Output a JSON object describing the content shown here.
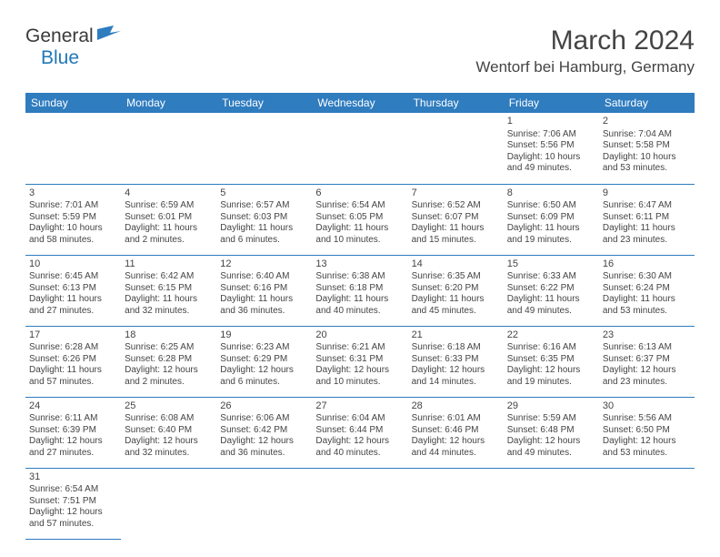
{
  "logo": {
    "text1": "General",
    "text2": "Blue"
  },
  "title": "March 2024",
  "location": "Wentorf bei Hamburg, Germany",
  "columns": [
    "Sunday",
    "Monday",
    "Tuesday",
    "Wednesday",
    "Thursday",
    "Friday",
    "Saturday"
  ],
  "colors": {
    "header_bg": "#2f7cbf",
    "header_text": "#ffffff",
    "border": "#2f7cbf",
    "body_text": "#444444",
    "logo_gray": "#3a3a3a",
    "logo_blue": "#2178b8",
    "background": "#ffffff"
  },
  "typography": {
    "month_title_fontsize": 30,
    "location_fontsize": 17,
    "logo_fontsize": 21,
    "header_cell_fontsize": 12,
    "daynum_fontsize": 11,
    "info_fontsize": 10
  },
  "weeks": [
    [
      null,
      null,
      null,
      null,
      null,
      {
        "day": "1",
        "sunrise": "Sunrise: 7:06 AM",
        "sunset": "Sunset: 5:56 PM",
        "daylight1": "Daylight: 10 hours",
        "daylight2": "and 49 minutes."
      },
      {
        "day": "2",
        "sunrise": "Sunrise: 7:04 AM",
        "sunset": "Sunset: 5:58 PM",
        "daylight1": "Daylight: 10 hours",
        "daylight2": "and 53 minutes."
      }
    ],
    [
      {
        "day": "3",
        "sunrise": "Sunrise: 7:01 AM",
        "sunset": "Sunset: 5:59 PM",
        "daylight1": "Daylight: 10 hours",
        "daylight2": "and 58 minutes."
      },
      {
        "day": "4",
        "sunrise": "Sunrise: 6:59 AM",
        "sunset": "Sunset: 6:01 PM",
        "daylight1": "Daylight: 11 hours",
        "daylight2": "and 2 minutes."
      },
      {
        "day": "5",
        "sunrise": "Sunrise: 6:57 AM",
        "sunset": "Sunset: 6:03 PM",
        "daylight1": "Daylight: 11 hours",
        "daylight2": "and 6 minutes."
      },
      {
        "day": "6",
        "sunrise": "Sunrise: 6:54 AM",
        "sunset": "Sunset: 6:05 PM",
        "daylight1": "Daylight: 11 hours",
        "daylight2": "and 10 minutes."
      },
      {
        "day": "7",
        "sunrise": "Sunrise: 6:52 AM",
        "sunset": "Sunset: 6:07 PM",
        "daylight1": "Daylight: 11 hours",
        "daylight2": "and 15 minutes."
      },
      {
        "day": "8",
        "sunrise": "Sunrise: 6:50 AM",
        "sunset": "Sunset: 6:09 PM",
        "daylight1": "Daylight: 11 hours",
        "daylight2": "and 19 minutes."
      },
      {
        "day": "9",
        "sunrise": "Sunrise: 6:47 AM",
        "sunset": "Sunset: 6:11 PM",
        "daylight1": "Daylight: 11 hours",
        "daylight2": "and 23 minutes."
      }
    ],
    [
      {
        "day": "10",
        "sunrise": "Sunrise: 6:45 AM",
        "sunset": "Sunset: 6:13 PM",
        "daylight1": "Daylight: 11 hours",
        "daylight2": "and 27 minutes."
      },
      {
        "day": "11",
        "sunrise": "Sunrise: 6:42 AM",
        "sunset": "Sunset: 6:15 PM",
        "daylight1": "Daylight: 11 hours",
        "daylight2": "and 32 minutes."
      },
      {
        "day": "12",
        "sunrise": "Sunrise: 6:40 AM",
        "sunset": "Sunset: 6:16 PM",
        "daylight1": "Daylight: 11 hours",
        "daylight2": "and 36 minutes."
      },
      {
        "day": "13",
        "sunrise": "Sunrise: 6:38 AM",
        "sunset": "Sunset: 6:18 PM",
        "daylight1": "Daylight: 11 hours",
        "daylight2": "and 40 minutes."
      },
      {
        "day": "14",
        "sunrise": "Sunrise: 6:35 AM",
        "sunset": "Sunset: 6:20 PM",
        "daylight1": "Daylight: 11 hours",
        "daylight2": "and 45 minutes."
      },
      {
        "day": "15",
        "sunrise": "Sunrise: 6:33 AM",
        "sunset": "Sunset: 6:22 PM",
        "daylight1": "Daylight: 11 hours",
        "daylight2": "and 49 minutes."
      },
      {
        "day": "16",
        "sunrise": "Sunrise: 6:30 AM",
        "sunset": "Sunset: 6:24 PM",
        "daylight1": "Daylight: 11 hours",
        "daylight2": "and 53 minutes."
      }
    ],
    [
      {
        "day": "17",
        "sunrise": "Sunrise: 6:28 AM",
        "sunset": "Sunset: 6:26 PM",
        "daylight1": "Daylight: 11 hours",
        "daylight2": "and 57 minutes."
      },
      {
        "day": "18",
        "sunrise": "Sunrise: 6:25 AM",
        "sunset": "Sunset: 6:28 PM",
        "daylight1": "Daylight: 12 hours",
        "daylight2": "and 2 minutes."
      },
      {
        "day": "19",
        "sunrise": "Sunrise: 6:23 AM",
        "sunset": "Sunset: 6:29 PM",
        "daylight1": "Daylight: 12 hours",
        "daylight2": "and 6 minutes."
      },
      {
        "day": "20",
        "sunrise": "Sunrise: 6:21 AM",
        "sunset": "Sunset: 6:31 PM",
        "daylight1": "Daylight: 12 hours",
        "daylight2": "and 10 minutes."
      },
      {
        "day": "21",
        "sunrise": "Sunrise: 6:18 AM",
        "sunset": "Sunset: 6:33 PM",
        "daylight1": "Daylight: 12 hours",
        "daylight2": "and 14 minutes."
      },
      {
        "day": "22",
        "sunrise": "Sunrise: 6:16 AM",
        "sunset": "Sunset: 6:35 PM",
        "daylight1": "Daylight: 12 hours",
        "daylight2": "and 19 minutes."
      },
      {
        "day": "23",
        "sunrise": "Sunrise: 6:13 AM",
        "sunset": "Sunset: 6:37 PM",
        "daylight1": "Daylight: 12 hours",
        "daylight2": "and 23 minutes."
      }
    ],
    [
      {
        "day": "24",
        "sunrise": "Sunrise: 6:11 AM",
        "sunset": "Sunset: 6:39 PM",
        "daylight1": "Daylight: 12 hours",
        "daylight2": "and 27 minutes."
      },
      {
        "day": "25",
        "sunrise": "Sunrise: 6:08 AM",
        "sunset": "Sunset: 6:40 PM",
        "daylight1": "Daylight: 12 hours",
        "daylight2": "and 32 minutes."
      },
      {
        "day": "26",
        "sunrise": "Sunrise: 6:06 AM",
        "sunset": "Sunset: 6:42 PM",
        "daylight1": "Daylight: 12 hours",
        "daylight2": "and 36 minutes."
      },
      {
        "day": "27",
        "sunrise": "Sunrise: 6:04 AM",
        "sunset": "Sunset: 6:44 PM",
        "daylight1": "Daylight: 12 hours",
        "daylight2": "and 40 minutes."
      },
      {
        "day": "28",
        "sunrise": "Sunrise: 6:01 AM",
        "sunset": "Sunset: 6:46 PM",
        "daylight1": "Daylight: 12 hours",
        "daylight2": "and 44 minutes."
      },
      {
        "day": "29",
        "sunrise": "Sunrise: 5:59 AM",
        "sunset": "Sunset: 6:48 PM",
        "daylight1": "Daylight: 12 hours",
        "daylight2": "and 49 minutes."
      },
      {
        "day": "30",
        "sunrise": "Sunrise: 5:56 AM",
        "sunset": "Sunset: 6:50 PM",
        "daylight1": "Daylight: 12 hours",
        "daylight2": "and 53 minutes."
      }
    ],
    [
      {
        "day": "31",
        "sunrise": "Sunrise: 6:54 AM",
        "sunset": "Sunset: 7:51 PM",
        "daylight1": "Daylight: 12 hours",
        "daylight2": "and 57 minutes."
      },
      null,
      null,
      null,
      null,
      null,
      null
    ]
  ]
}
